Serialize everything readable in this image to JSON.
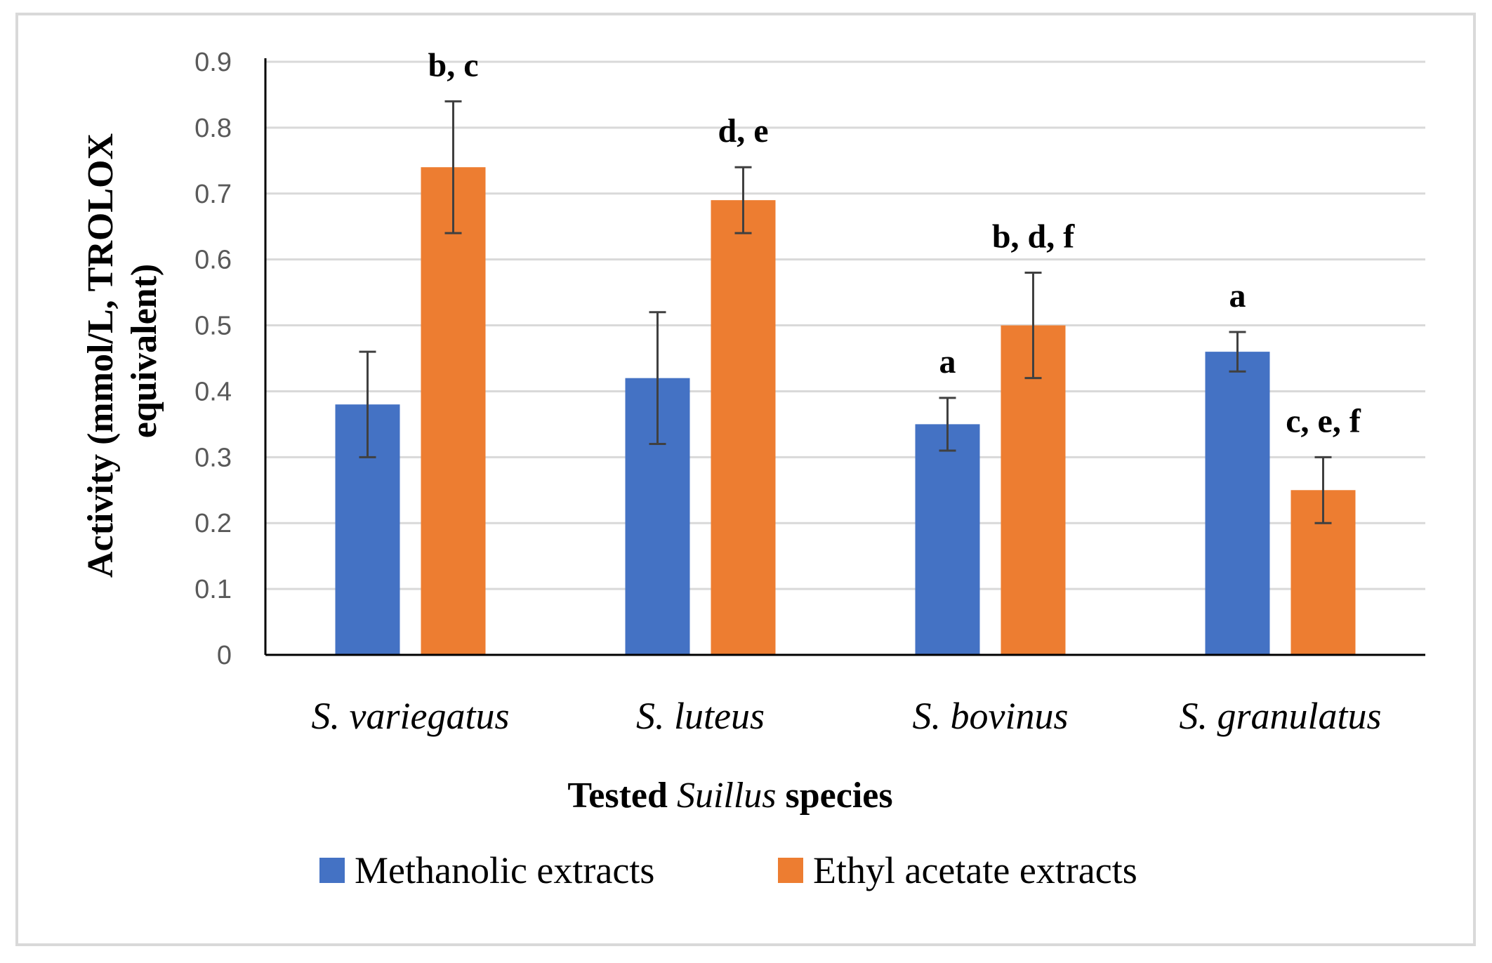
{
  "chart_data": {
    "type": "bar",
    "categories": [
      "S. variegatus",
      "S. luteus",
      "S. bovinus",
      "S. granulatus"
    ],
    "series": [
      {
        "name": "Methanolic extracts",
        "color": "#4472c4",
        "values": [
          0.38,
          0.42,
          0.35,
          0.46
        ],
        "errors": [
          0.08,
          0.1,
          0.04,
          0.03
        ],
        "labels": [
          "",
          "",
          "a",
          "a"
        ]
      },
      {
        "name": "Ethyl acetate extracts",
        "color": "#ed7d31",
        "values": [
          0.74,
          0.69,
          0.5,
          0.25
        ],
        "errors": [
          0.1,
          0.05,
          0.08,
          0.05
        ],
        "labels": [
          "b, c",
          "d, e",
          "b, d, f",
          "c, e, f"
        ]
      }
    ],
    "ylim": [
      0,
      0.9
    ],
    "yticks": [
      "0",
      "0.1",
      "0.2",
      "0.3",
      "0.4",
      "0.5",
      "0.6",
      "0.7",
      "0.8",
      "0.9"
    ],
    "ylabel_line1": "Activity (mmol/L, TROLOX",
    "ylabel_line2": "equivalent)",
    "xlabel_pre": "Tested ",
    "xlabel_italic": "Suillus",
    "xlabel_post": " species",
    "grid": true,
    "legend_position": "bottom",
    "gridline_color": "#d9d9d9",
    "axis_color": "#000000",
    "errorbar_color": "#404040"
  }
}
